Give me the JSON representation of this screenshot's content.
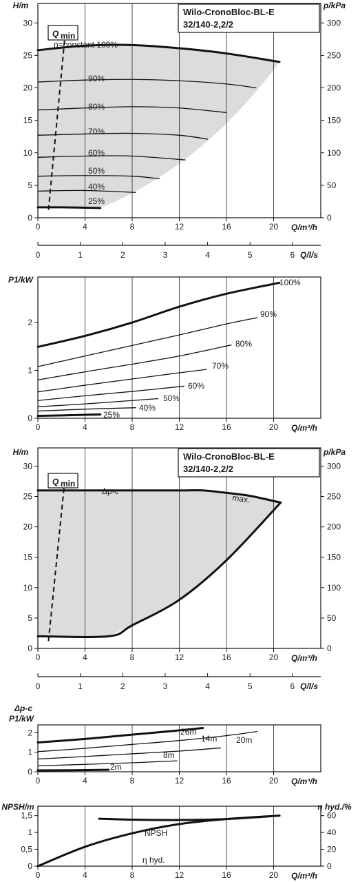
{
  "product": {
    "line1": "Wilo-CronoBloc-BL-E",
    "line2": "32/140-2,2/2"
  },
  "chart_data": [
    {
      "id": "c1",
      "type": "line",
      "ylabel": "H/m",
      "xlabel": "Q/m³/h",
      "ylabel_right": "p/kPa",
      "xlabel2": "Q/l/s",
      "qmin_label_main": "Q",
      "qmin_label_sub": "min",
      "xticks": [
        0,
        4,
        8,
        12,
        16,
        20
      ],
      "yticks": [
        0,
        5,
        10,
        15,
        20,
        25,
        30
      ],
      "yticks_right": [
        0,
        50,
        100,
        150,
        200,
        250,
        300
      ],
      "x2ticks": [
        0,
        1,
        2,
        3,
        4,
        5,
        6
      ],
      "xlim": [
        0,
        24
      ],
      "ylim": [
        0,
        33
      ],
      "shaded_region": "operating-area",
      "series": [
        {
          "name": "n=constant 100%",
          "bold": true,
          "x": [
            0,
            4,
            8,
            12,
            16,
            20.5
          ],
          "y": [
            25.8,
            26.5,
            26.6,
            26.1,
            25.3,
            24.0
          ]
        },
        {
          "name": "90%",
          "x": [
            0,
            4,
            8,
            12,
            16,
            18.5
          ],
          "y": [
            20.9,
            21.2,
            21.3,
            21.1,
            20.6,
            20.0
          ]
        },
        {
          "name": "80%",
          "x": [
            0,
            4,
            8,
            12,
            16
          ],
          "y": [
            16.6,
            16.9,
            17.1,
            16.9,
            16.2
          ]
        },
        {
          "name": "70%",
          "x": [
            0,
            4,
            8,
            12,
            14.4
          ],
          "y": [
            12.7,
            12.9,
            13.0,
            12.7,
            12.1
          ]
        },
        {
          "name": "60%",
          "x": [
            0,
            4,
            8,
            12.5
          ],
          "y": [
            9.3,
            9.5,
            9.5,
            8.9
          ]
        },
        {
          "name": "50%",
          "x": [
            0,
            4,
            8,
            10.3
          ],
          "y": [
            6.4,
            6.5,
            6.4,
            6.0
          ]
        },
        {
          "name": "40%",
          "x": [
            0,
            4,
            8.3
          ],
          "y": [
            4.1,
            4.2,
            3.9
          ]
        },
        {
          "name": "25%",
          "bold": true,
          "x": [
            0,
            2,
            5.3
          ],
          "y": [
            1.6,
            1.6,
            1.5
          ]
        }
      ],
      "qmin": {
        "x": [
          0.9,
          2.3
        ],
        "y": [
          1.2,
          28.0
        ]
      }
    },
    {
      "id": "c2",
      "type": "line",
      "ylabel": "P1/kW",
      "xlabel": "Q/m³/h",
      "xticks": [
        0,
        4,
        8,
        12,
        16,
        20
      ],
      "yticks": [
        0,
        1,
        2
      ],
      "xlim": [
        0,
        24
      ],
      "ylim": [
        0,
        2.95
      ],
      "series": [
        {
          "name": "100%",
          "bold": true,
          "x": [
            0,
            4,
            8,
            12,
            16,
            20.5
          ],
          "y": [
            1.49,
            1.72,
            2.0,
            2.33,
            2.6,
            2.83
          ]
        },
        {
          "name": "90%",
          "x": [
            0,
            4,
            8,
            12,
            16,
            18.6
          ],
          "y": [
            1.08,
            1.3,
            1.52,
            1.74,
            1.97,
            2.1
          ]
        },
        {
          "name": "80%",
          "x": [
            0,
            4,
            8,
            12,
            16.4
          ],
          "y": [
            0.8,
            0.97,
            1.13,
            1.3,
            1.53
          ]
        },
        {
          "name": "70%",
          "x": [
            0,
            4,
            8,
            12,
            14.3
          ],
          "y": [
            0.55,
            0.69,
            0.82,
            0.95,
            1.02
          ]
        },
        {
          "name": "60%",
          "x": [
            0,
            4,
            8,
            12.4
          ],
          "y": [
            0.37,
            0.47,
            0.56,
            0.67
          ]
        },
        {
          "name": "50%",
          "x": [
            0,
            4,
            8,
            10.2
          ],
          "y": [
            0.24,
            0.3,
            0.37,
            0.41
          ]
        },
        {
          "name": "40%",
          "x": [
            0,
            4,
            8.3
          ],
          "y": [
            0.15,
            0.19,
            0.22
          ]
        },
        {
          "name": "25%",
          "bold": true,
          "x": [
            0,
            2,
            5.3
          ],
          "y": [
            0.05,
            0.06,
            0.08
          ]
        }
      ]
    },
    {
      "id": "c3",
      "type": "line",
      "ylabel": "H/m",
      "xlabel": "Q/m³/h",
      "ylabel_right": "p/kPa",
      "xlabel2": "Q/l/s",
      "qmin_label_main": "Q",
      "qmin_label_sub": "min",
      "xticks": [
        0,
        4,
        8,
        12,
        16,
        20
      ],
      "yticks": [
        0,
        5,
        10,
        15,
        20,
        25,
        30
      ],
      "yticks_right": [
        0,
        50,
        100,
        150,
        200,
        250,
        300
      ],
      "x2ticks": [
        0,
        1,
        2,
        3,
        4,
        5,
        6
      ],
      "xlim": [
        0,
        24
      ],
      "ylim": [
        0,
        33
      ],
      "annotations": [
        "Δp-c",
        "max."
      ],
      "series": [
        {
          "name": "Δp-c",
          "bold": true,
          "x": [
            0,
            4,
            8,
            12,
            14,
            16,
            18,
            20.6
          ],
          "y": [
            26.0,
            26.0,
            26.0,
            26.0,
            26.0,
            25.6,
            25.1,
            24.0
          ]
        },
        {
          "name": "max.",
          "bold": true,
          "x": [
            20.6,
            16,
            12,
            8,
            6.0,
            0
          ],
          "y": [
            24.0,
            14.5,
            8.0,
            3.8,
            2.0,
            2.0
          ]
        }
      ],
      "qmin": {
        "x": [
          0.9,
          2.3
        ],
        "y": [
          1.2,
          28.0
        ]
      }
    },
    {
      "id": "c4",
      "type": "line",
      "ylabel": "Δp-c",
      "ylabel2": "P1/kW",
      "xlabel": "Q/m³/h",
      "xticks": [
        0,
        4,
        8,
        12,
        16,
        20
      ],
      "yticks": [
        0,
        1,
        2
      ],
      "xlim": [
        0,
        24
      ],
      "ylim": [
        0,
        2.4
      ],
      "series": [
        {
          "name": "26m",
          "bold": true,
          "x": [
            0,
            4,
            8,
            12,
            14
          ],
          "y": [
            1.5,
            1.68,
            1.9,
            2.12,
            2.24
          ]
        },
        {
          "name": "20m",
          "x": [
            0,
            4,
            8,
            12,
            16,
            18.6
          ],
          "y": [
            1.03,
            1.2,
            1.4,
            1.6,
            1.85,
            2.06
          ]
        },
        {
          "name": "14m",
          "x": [
            0,
            4,
            8,
            12,
            15.5
          ],
          "y": [
            0.65,
            0.78,
            0.92,
            1.06,
            1.22
          ]
        },
        {
          "name": "8m",
          "x": [
            0,
            4,
            8,
            11.8
          ],
          "y": [
            0.3,
            0.38,
            0.46,
            0.56
          ]
        },
        {
          "name": "2m",
          "bold": true,
          "x": [
            0,
            3,
            6
          ],
          "y": [
            0.07,
            0.08,
            0.1
          ]
        }
      ]
    },
    {
      "id": "c5",
      "type": "line",
      "ylabel": "NPSH/m",
      "ylabel_right": "η hyd./%",
      "xlabel": "Q/m³/h",
      "xticks": [
        0,
        4,
        8,
        12,
        16,
        20
      ],
      "yticks": [
        0,
        0.5,
        1,
        1.5
      ],
      "ytick_labels": [
        "0",
        "0,5",
        "1",
        "1,5"
      ],
      "yticks_right": [
        0,
        20,
        40,
        60
      ],
      "xlim": [
        0,
        24
      ],
      "ylim": [
        0,
        1.78
      ],
      "series": [
        {
          "name": "NPSH",
          "bold": true,
          "axis": "left",
          "x": [
            5.2,
            8,
            12,
            16,
            20.5
          ],
          "y": [
            1.41,
            1.38,
            1.37,
            1.4,
            1.5
          ]
        },
        {
          "name": "η hyd.",
          "bold": true,
          "axis": "right",
          "x": [
            0,
            4,
            8,
            12,
            16,
            20.5
          ],
          "y": [
            0,
            23,
            39,
            50,
            56,
            60
          ]
        }
      ]
    }
  ]
}
